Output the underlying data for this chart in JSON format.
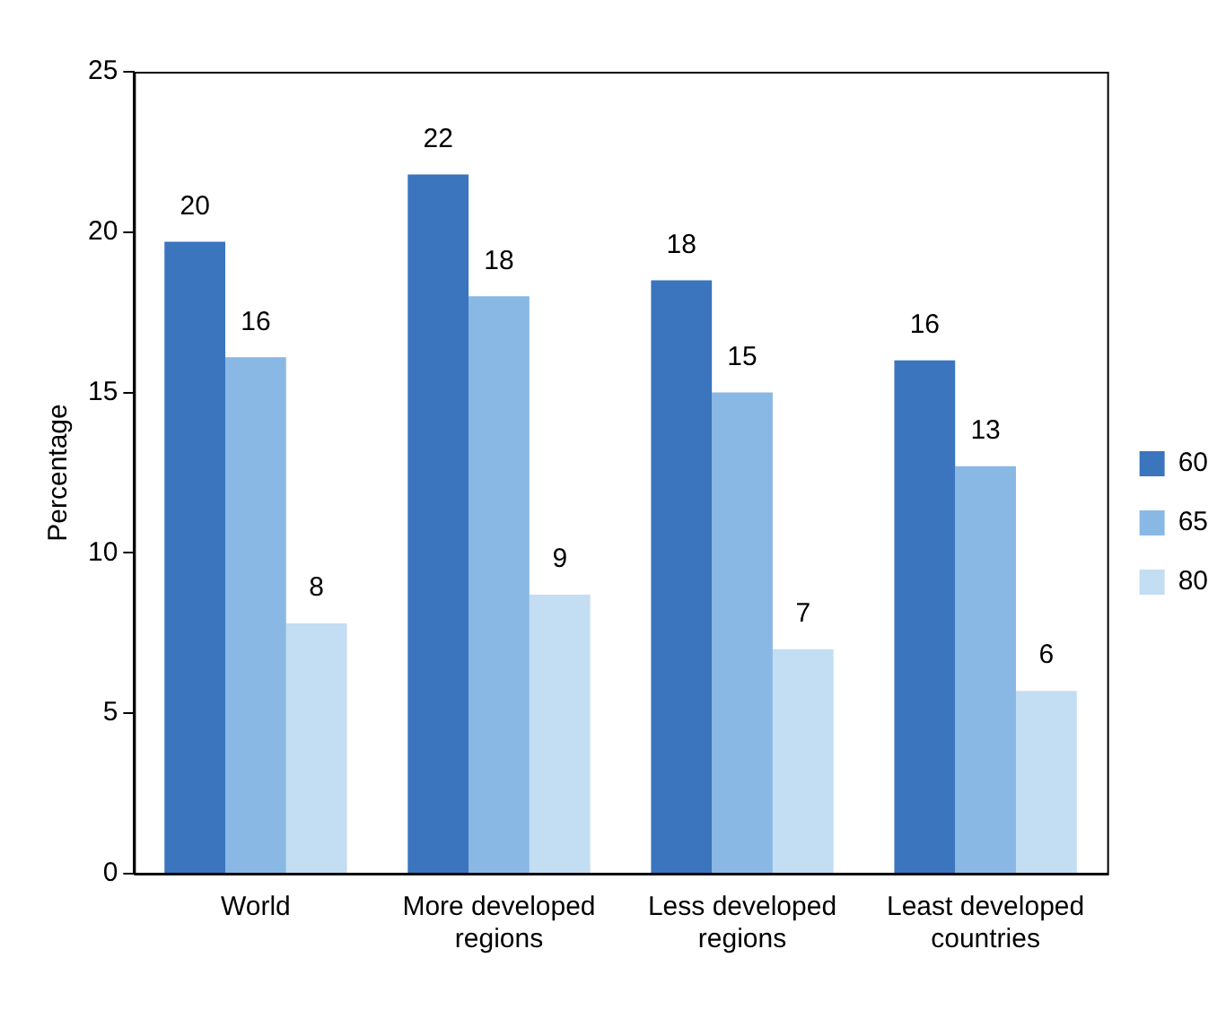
{
  "chart_data": {
    "type": "bar",
    "ylabel": "Percentage",
    "categories": [
      "World",
      "More developed regions",
      "Less developed regions",
      "Least developed countries"
    ],
    "series": [
      {
        "name": "60",
        "color": "#3a75be",
        "values": [
          19.7,
          21.8,
          18.5,
          16.0
        ],
        "value_labels": [
          "20",
          "22",
          "18",
          "16"
        ]
      },
      {
        "name": "65",
        "color": "#8ab8e4",
        "values": [
          16.1,
          18.0,
          15.0,
          12.7
        ],
        "value_labels": [
          "16",
          "18",
          "15",
          "13"
        ]
      },
      {
        "name": "80",
        "color": "#c3ddf2",
        "values": [
          7.8,
          8.7,
          7.0,
          5.7
        ],
        "value_labels": [
          "8",
          "9",
          "7",
          "6"
        ]
      }
    ],
    "ylim": [
      0,
      25
    ],
    "yticks": [
      0,
      5,
      10,
      15,
      20,
      25
    ],
    "grid": false,
    "legend": "right"
  }
}
